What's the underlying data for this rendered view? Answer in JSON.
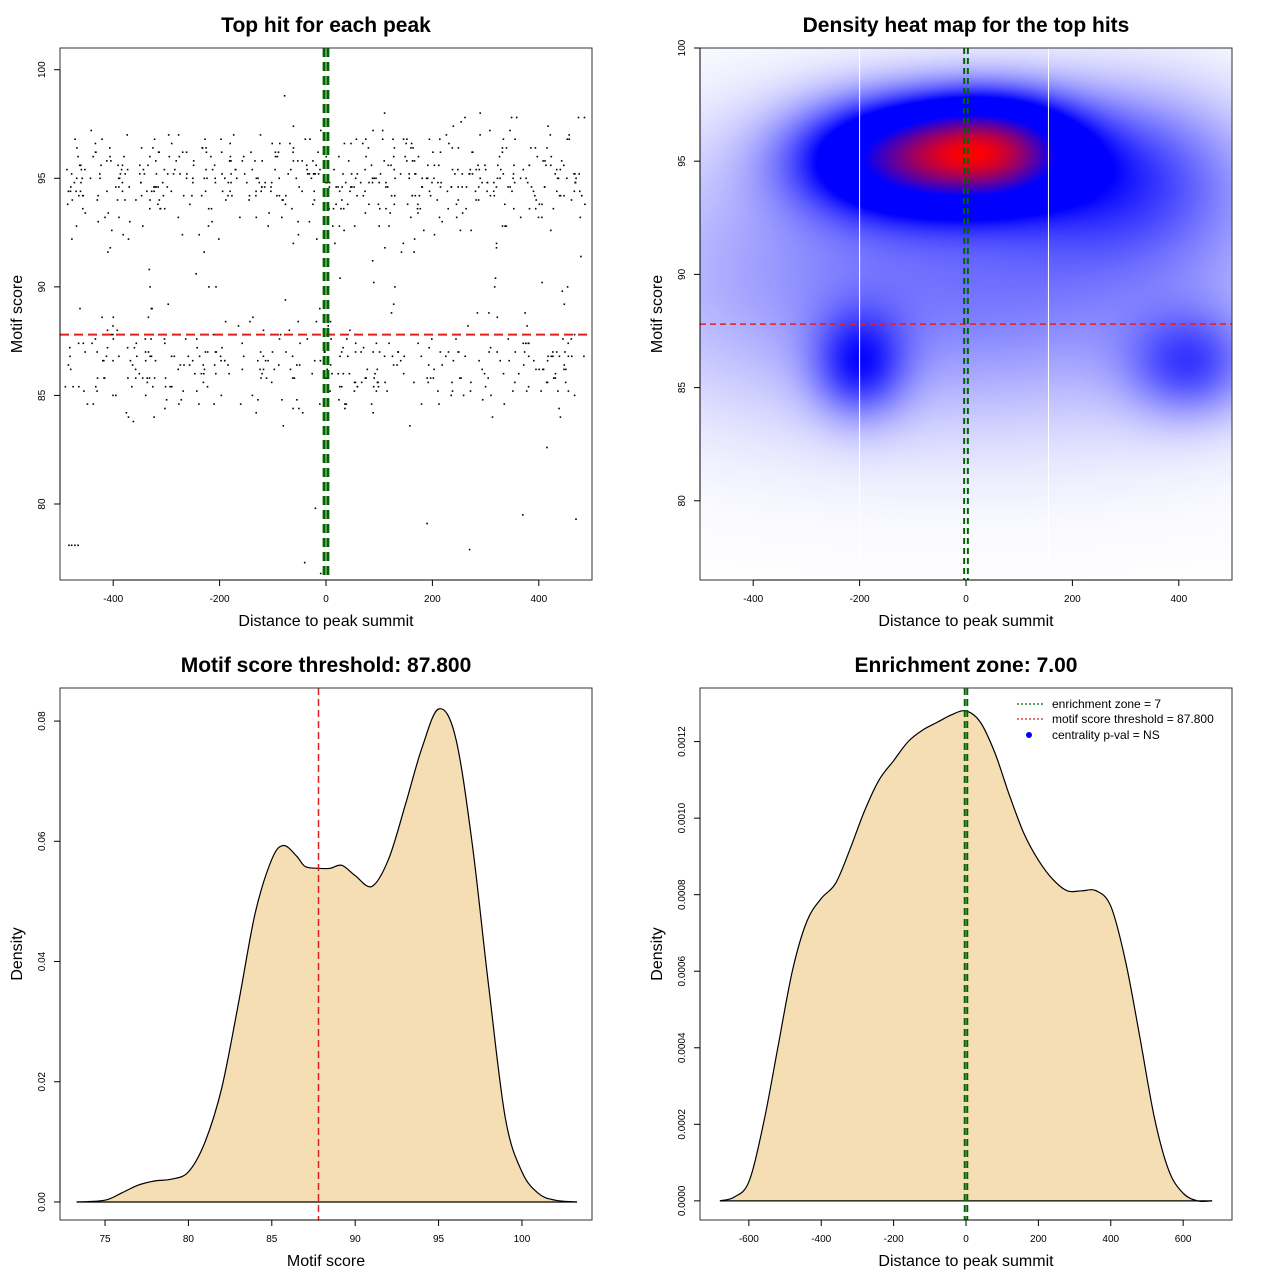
{
  "chart_data": [
    {
      "type": "scatter",
      "title": "Top hit for each peak",
      "xlabel": "Distance to peak summit",
      "ylabel": "Motif score",
      "xlim": [
        -500,
        500
      ],
      "ylim": [
        76.5,
        101
      ],
      "xticks": [
        -400,
        -200,
        0,
        200,
        400
      ],
      "yticks": [
        80,
        85,
        90,
        95,
        100
      ],
      "hline": 87.8,
      "vlines": [
        -3.5,
        3.5
      ],
      "n_points": 900,
      "colors": {
        "points": "#000000",
        "hline": "#e02020",
        "vlines": "#006400"
      }
    },
    {
      "type": "heatmap",
      "title": "Density heat map for the top hits",
      "xlabel": "Distance to peak summit",
      "ylabel": "Motif score",
      "xlim": [
        -500,
        500
      ],
      "ylim": [
        76.5,
        100
      ],
      "xticks": [
        -400,
        -200,
        0,
        200,
        400
      ],
      "yticks": [
        80,
        85,
        90,
        95,
        100
      ],
      "hline": 87.8,
      "vlines": [
        -3.5,
        3.5
      ],
      "whitelines": [
        -200,
        155
      ],
      "hotspots": [
        {
          "x": 50,
          "y": 95.5,
          "sx": 110,
          "sy": 1.6,
          "w": 1.0
        },
        {
          "x": -130,
          "y": 95.2,
          "sx": 130,
          "sy": 1.7,
          "w": 0.8
        },
        {
          "x": -200,
          "y": 86,
          "sx": 60,
          "sy": 1.6,
          "w": 0.35
        },
        {
          "x": 420,
          "y": 86,
          "sx": 80,
          "sy": 1.6,
          "w": 0.3
        },
        {
          "x": 300,
          "y": 94.5,
          "sx": 150,
          "sy": 2.5,
          "w": 0.3
        },
        {
          "x": 0,
          "y": 90,
          "sx": 450,
          "sy": 4.5,
          "w": 0.3
        }
      ],
      "colors": {
        "low": "#ffffff",
        "mid": "#0000ff",
        "high": "#ff0000",
        "hline": "#e02020",
        "vlines": "#006400"
      }
    },
    {
      "type": "area",
      "title": "Motif score threshold: 87.800",
      "xlabel": "Motif score",
      "ylabel": "Density",
      "xlim": [
        72.3,
        104.2
      ],
      "ylim": [
        -0.003,
        0.0855
      ],
      "xticks": [
        75,
        80,
        85,
        90,
        95,
        100
      ],
      "yticks": [
        0.0,
        0.02,
        0.04,
        0.06,
        0.08
      ],
      "ytick_labels": [
        "0.00",
        "0.02",
        "0.04",
        "0.06",
        "0.08"
      ],
      "vline": 87.8,
      "x": [
        73.3,
        75,
        76,
        77,
        78,
        79,
        80,
        81,
        82,
        83,
        84,
        85,
        85.7,
        86.5,
        87,
        87.8,
        88.5,
        89.2,
        90,
        91,
        92,
        93,
        94,
        95,
        96,
        97,
        98,
        99,
        100,
        101,
        102,
        103.3
      ],
      "y": [
        0.0,
        0.0003,
        0.0015,
        0.0028,
        0.0035,
        0.0038,
        0.005,
        0.01,
        0.019,
        0.033,
        0.048,
        0.057,
        0.0593,
        0.0575,
        0.0558,
        0.0555,
        0.0555,
        0.056,
        0.0543,
        0.0525,
        0.057,
        0.066,
        0.0755,
        0.082,
        0.0775,
        0.06,
        0.036,
        0.014,
        0.005,
        0.0014,
        0.0003,
        0.0
      ],
      "colors": {
        "fill": "#f5deb3",
        "line": "#000000",
        "vline": "#e02020"
      }
    },
    {
      "type": "area",
      "title": "Enrichment zone: 7.00",
      "xlabel": "Distance to peak summit",
      "ylabel": "Density",
      "xlim": [
        -735,
        735
      ],
      "ylim": [
        -5e-05,
        0.00134
      ],
      "xticks": [
        -600,
        -400,
        -200,
        0,
        200,
        400,
        600
      ],
      "yticks": [
        0.0,
        0.0002,
        0.0004,
        0.0006,
        0.0008,
        0.001,
        0.0012
      ],
      "ytick_labels": [
        "0.0000",
        "0.0002",
        "0.0004",
        "0.0006",
        "0.0008",
        "0.0010",
        "0.0012"
      ],
      "vlines": [
        -3.5,
        3.5
      ],
      "x": [
        -680,
        -640,
        -600,
        -560,
        -520,
        -480,
        -440,
        -400,
        -360,
        -320,
        -280,
        -240,
        -200,
        -160,
        -120,
        -80,
        -40,
        0,
        40,
        80,
        120,
        160,
        200,
        240,
        280,
        320,
        360,
        400,
        440,
        480,
        520,
        560,
        600,
        640,
        680
      ],
      "y": [
        0.0,
        1e-05,
        5e-05,
        0.0002,
        0.0004,
        0.0006,
        0.00073,
        0.00079,
        0.00083,
        0.00092,
        0.00102,
        0.0011,
        0.00115,
        0.0012,
        0.00123,
        0.00125,
        0.00127,
        0.00128,
        0.00125,
        0.00117,
        0.00106,
        0.00096,
        0.00089,
        0.00084,
        0.00081,
        0.00081,
        0.00081,
        0.00077,
        0.00063,
        0.00043,
        0.00022,
        8e-05,
        2e-05,
        0.0,
        0.0
      ],
      "legend": {
        "position": "top-right",
        "entries": [
          {
            "label": "enrichment zone = 7",
            "style": "dotted-line",
            "color": "#006400"
          },
          {
            "label": "motif score threshold = 87.800",
            "style": "dotted-line",
            "color": "#e02020"
          },
          {
            "label": "centrality p-val = NS",
            "style": "point",
            "color": "#0000ff"
          }
        ]
      },
      "colors": {
        "fill": "#f5deb3",
        "line": "#000000",
        "vlines": "#006400"
      }
    }
  ]
}
